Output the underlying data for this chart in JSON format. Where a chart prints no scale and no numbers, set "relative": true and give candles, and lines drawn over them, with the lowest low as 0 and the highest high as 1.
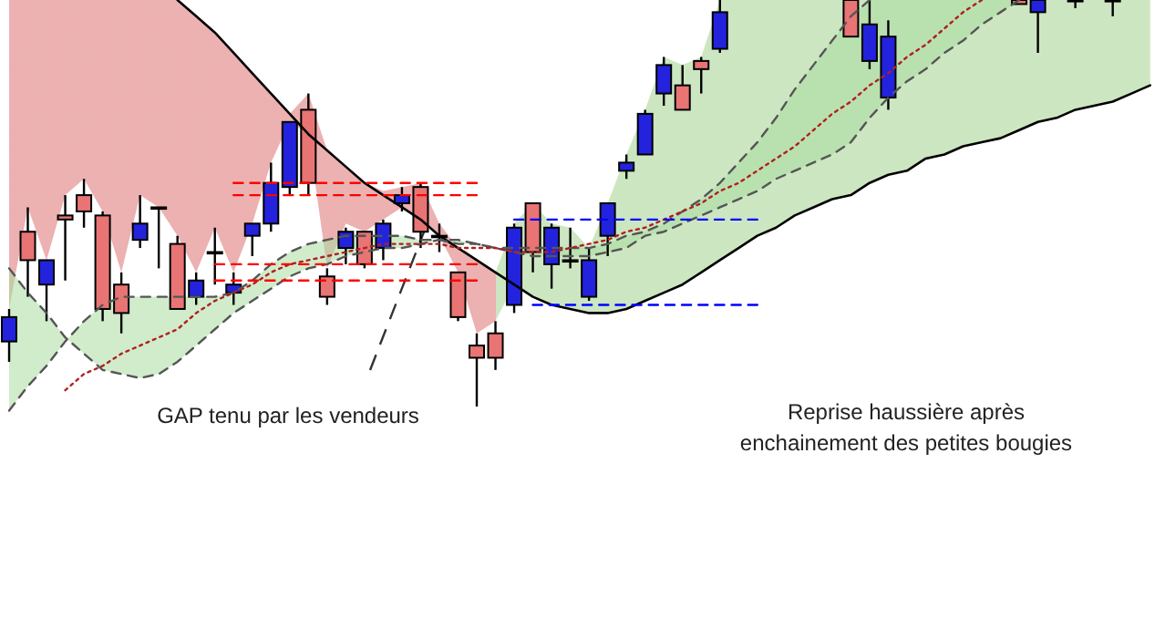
{
  "chart_data": {
    "type": "candlestick",
    "relative": true,
    "categories": [
      null,
      null,
      null,
      null,
      null,
      null,
      null,
      null,
      null,
      null,
      null,
      null,
      null,
      null,
      null,
      null,
      null,
      null,
      null,
      null,
      null,
      null,
      null,
      null,
      null,
      null,
      null,
      null,
      null,
      null,
      null,
      null,
      null,
      null,
      null,
      null,
      null,
      null,
      null,
      null,
      null,
      null,
      null,
      null,
      null,
      null,
      null,
      null,
      null,
      null,
      null,
      null,
      null,
      null,
      null,
      null,
      null,
      null,
      null,
      null,
      null,
      null
    ],
    "ohlc": [
      [
        0.16,
        0.24,
        0.11,
        0.22
      ],
      [
        0.43,
        0.49,
        0.27,
        0.36
      ],
      [
        0.3,
        0.36,
        0.21,
        0.36
      ],
      [
        0.47,
        0.52,
        0.31,
        0.46
      ],
      [
        0.52,
        0.56,
        0.44,
        0.48
      ],
      [
        0.47,
        0.48,
        0.21,
        0.24
      ],
      [
        0.3,
        0.33,
        0.18,
        0.23
      ],
      [
        0.41,
        0.52,
        0.39,
        0.45
      ],
      [
        0.49,
        0.49,
        0.34,
        0.49
      ],
      [
        0.4,
        0.42,
        0.24,
        0.24
      ],
      [
        0.27,
        0.33,
        0.25,
        0.31
      ],
      [
        0.38,
        0.44,
        0.3,
        0.38
      ],
      [
        0.28,
        0.33,
        0.25,
        0.3
      ],
      [
        0.42,
        0.45,
        0.37,
        0.45
      ],
      [
        0.45,
        0.6,
        0.43,
        0.55
      ],
      [
        0.54,
        0.7,
        0.52,
        0.7
      ],
      [
        0.73,
        0.77,
        0.52,
        0.55
      ],
      [
        0.32,
        0.34,
        0.25,
        0.27
      ],
      [
        0.39,
        0.44,
        0.35,
        0.43
      ],
      [
        0.43,
        0.43,
        0.34,
        0.35
      ],
      [
        0.39,
        0.46,
        0.36,
        0.45
      ],
      [
        0.5,
        0.54,
        0.48,
        0.52
      ],
      [
        0.54,
        0.55,
        0.39,
        0.43
      ],
      [
        0.42,
        0.45,
        0.38,
        0.42
      ],
      [
        0.33,
        0.33,
        0.21,
        0.22
      ],
      [
        0.15,
        0.18,
        0,
        0.12
      ],
      [
        0.18,
        0.21,
        0.09,
        0.12
      ],
      [
        0.25,
        0.45,
        0.23,
        0.44
      ],
      [
        0.5,
        0.5,
        0.33,
        0.38
      ],
      [
        0.35,
        0.45,
        0.29,
        0.44
      ],
      [
        0.36,
        0.44,
        0.34,
        0.36
      ],
      [
        0.27,
        0.39,
        0.26,
        0.36
      ],
      [
        0.42,
        0.5,
        0.37,
        0.5
      ],
      [
        0.58,
        0.62,
        0.56,
        0.6
      ],
      [
        0.62,
        0.73,
        0.62,
        0.72
      ],
      [
        0.77,
        0.86,
        0.74,
        0.84
      ],
      [
        0.79,
        0.84,
        0.73,
        0.73
      ],
      [
        0.85,
        0.86,
        0.77,
        0.83
      ],
      [
        0.88,
        1,
        0.87,
        0.97
      ],
      null,
      null,
      null,
      null,
      null,
      null,
      [
        1,
        1,
        0.91,
        0.91
      ],
      [
        0.85,
        1,
        0.83,
        0.94
      ],
      [
        0.76,
        0.95,
        0.73,
        0.91
      ],
      null,
      null,
      null,
      null,
      null,
      null,
      [
        1,
        1,
        0.99,
        0.99
      ],
      [
        0.97,
        1,
        0.87,
        1
      ],
      null,
      [
        1,
        1,
        0.98,
        1
      ],
      null,
      [
        1,
        1,
        0.96,
        1
      ],
      null,
      null
    ],
    "colors": [
      "#2323dd",
      "#e87474",
      "#2323dd",
      "#e87474",
      "#e87474",
      "#e87474",
      "#e87474",
      "#2323dd",
      "#e87474",
      "#e87474",
      "#2323dd",
      "#e87474",
      "#2323dd",
      "#2323dd",
      "#2323dd",
      "#2323dd",
      "#e87474",
      "#e87474",
      "#2323dd",
      "#e87474",
      "#2323dd",
      "#2323dd",
      "#e87474",
      "#e87474",
      "#e87474",
      "#e87474",
      "#e87474",
      "#2323dd",
      "#e87474",
      "#2323dd",
      "#e87474",
      "#2323dd",
      "#2323dd",
      "#2323dd",
      "#2323dd",
      "#2323dd",
      "#e87474",
      "#e87474",
      "#2323dd",
      null,
      null,
      null,
      null,
      null,
      null,
      "#e87474",
      "#2323dd",
      "#2323dd",
      null,
      null,
      null,
      null,
      null,
      null,
      "#e87474",
      "#2323dd",
      null,
      "#e87474",
      null,
      "#e87474",
      null,
      null
    ],
    "series": [
      {
        "type": "line",
        "color": "#000000",
        "line_style": "solid",
        "values": [
          null,
          null,
          null,
          null,
          null,
          null,
          null,
          null,
          null,
          1.0,
          0.96,
          0.92,
          0.87,
          0.82,
          0.77,
          0.72,
          0.67,
          0.63,
          0.59,
          0.55,
          0.52,
          0.49,
          0.46,
          0.42,
          0.39,
          0.36,
          0.33,
          0.3,
          0.27,
          0.25,
          0.24,
          0.23,
          0.23,
          0.24,
          0.26,
          0.28,
          0.3,
          0.33,
          0.36,
          0.39,
          0.42,
          0.44,
          0.47,
          0.49,
          0.51,
          0.52,
          0.55,
          0.57,
          0.58,
          0.61,
          0.62,
          0.64,
          0.65,
          0.66,
          0.68,
          0.7,
          0.71,
          0.73,
          0.74,
          0.75,
          0.77,
          0.79
        ],
        "lower": [
          0.24,
          0.49,
          0.36,
          0.52,
          0.56,
          0.48,
          0.33,
          0.52,
          0.49,
          0.42,
          0.33,
          0.44,
          0.33,
          0.45,
          0.6,
          0.7,
          0.67,
          0.34,
          0.45,
          0.43,
          0.46,
          0.49,
          0.46,
          0.42,
          0.33,
          0.18,
          0.21,
          0.3,
          0.27,
          0.25,
          0.24,
          0.23,
          0.23,
          0.24,
          0.26,
          0.28,
          0.3,
          0.33,
          0.36,
          0.39,
          0.42,
          0.44,
          0.47,
          0.49,
          0.51,
          0.52,
          0.55,
          0.57,
          0.58,
          0.61,
          0.62,
          0.64,
          0.65,
          0.66,
          0.68,
          0.7,
          0.71,
          0.73,
          0.74,
          0.75,
          0.77,
          0.79
        ],
        "upper": [
          1,
          1,
          1,
          1,
          1,
          1,
          1,
          1,
          1,
          1.0,
          0.96,
          0.92,
          0.87,
          0.82,
          0.77,
          0.72,
          0.77,
          0.63,
          0.59,
          0.55,
          0.53,
          0.54,
          0.55,
          0.45,
          0.39,
          0.36,
          0.33,
          0.45,
          0.5,
          0.45,
          0.44,
          0.39,
          0.5,
          0.62,
          0.73,
          0.86,
          0.84,
          0.86,
          1,
          1,
          1,
          1,
          1,
          1,
          1,
          1,
          1,
          1,
          1,
          1,
          1,
          1,
          1,
          1,
          1,
          1,
          1,
          1,
          1,
          1,
          1,
          1
        ]
      },
      {
        "type": "line",
        "color": "#555555",
        "line_style": "dashed",
        "values": [
          -0.01,
          0.05,
          0.1,
          0.16,
          0.21,
          0.25,
          0.27,
          0.27,
          0.27,
          0.27,
          0.27,
          0.27,
          0.28,
          0.31,
          0.35,
          0.38,
          0.4,
          0.41,
          0.42,
          0.42,
          0.42,
          0.42,
          0.41,
          0.41,
          0.4,
          0.4,
          0.39,
          0.39,
          0.39,
          0.39,
          0.39,
          0.39,
          0.4,
          0.42,
          0.43,
          0.45,
          0.48,
          0.51,
          0.55,
          0.6,
          0.65,
          0.71,
          0.78,
          0.84,
          0.9,
          0.96,
          1.0,
          null,
          null,
          null,
          null,
          null,
          null,
          null,
          null,
          null,
          null,
          null,
          null,
          null,
          null,
          null
        ],
        "lower": [
          0.34,
          0.28,
          0.23,
          0.17,
          0.13,
          0.09,
          0.08,
          0.07,
          0.08,
          0.11,
          0.15,
          0.19,
          0.23,
          0.26,
          0.29,
          0.32,
          0.34,
          0.35,
          0.37,
          0.38,
          0.39,
          0.39,
          0.4,
          0.41,
          0.41,
          0.4,
          0.39,
          0.38,
          0.37,
          0.37,
          0.37,
          0.37,
          0.38,
          0.39,
          0.42,
          0.43,
          0.45,
          0.47,
          0.49,
          0.51,
          0.53,
          0.56,
          0.58,
          0.6,
          0.62,
          0.65,
          0.71,
          0.76,
          0.8,
          0.83,
          0.87,
          0.9,
          0.94,
          0.97,
          1.0,
          null,
          null,
          null,
          null,
          null,
          null,
          null
        ],
        "upper": [
          -0.01,
          0.05,
          0.1,
          0.16,
          0.21,
          0.25,
          0.27,
          0.27,
          0.27,
          0.27,
          0.27,
          0.27,
          0.28,
          0.31,
          0.35,
          0.38,
          0.4,
          0.41,
          0.42,
          0.42,
          0.42,
          0.42,
          0.41,
          0.41,
          0.4,
          0.4,
          0.39,
          0.39,
          0.39,
          0.39,
          0.39,
          0.39,
          0.4,
          0.42,
          0.43,
          0.45,
          0.48,
          0.51,
          0.55,
          0.6,
          0.65,
          0.71,
          0.78,
          0.84,
          0.9,
          0.96,
          1.0,
          1,
          1,
          1,
          1,
          1,
          1,
          1,
          1,
          null,
          null,
          null,
          null,
          null,
          null,
          null
        ]
      },
      {
        "type": "line",
        "color": "#555555",
        "line_style": "dashed",
        "values": [
          0.34,
          0.28,
          0.23,
          0.17,
          0.13,
          0.09,
          0.08,
          0.07,
          0.08,
          0.11,
          0.15,
          0.19,
          0.23,
          0.26,
          0.29,
          0.32,
          0.34,
          0.35,
          0.37,
          0.38,
          0.39,
          0.39,
          0.4,
          0.41,
          0.41,
          0.4,
          0.39,
          0.38,
          0.37,
          0.37,
          0.37,
          0.37,
          0.38,
          0.39,
          0.42,
          0.43,
          0.45,
          0.47,
          0.49,
          0.51,
          0.53,
          0.56,
          0.58,
          0.6,
          0.62,
          0.65,
          0.71,
          0.76,
          0.8,
          0.83,
          0.87,
          0.9,
          0.94,
          0.97,
          1.0,
          null,
          null,
          null,
          null,
          null,
          null,
          null
        ]
      },
      {
        "type": "line",
        "color": "#b02020",
        "line_style": "dotted",
        "values": [
          null,
          null,
          null,
          0.04,
          0.08,
          0.1,
          0.13,
          0.15,
          0.17,
          0.19,
          0.23,
          0.26,
          0.28,
          0.3,
          0.33,
          0.35,
          0.36,
          0.37,
          0.38,
          0.39,
          0.4,
          0.4,
          0.4,
          0.4,
          0.39,
          0.39,
          0.39,
          0.38,
          0.38,
          0.38,
          0.39,
          0.4,
          0.41,
          0.43,
          0.44,
          0.46,
          0.48,
          0.5,
          0.53,
          0.55,
          0.58,
          0.61,
          0.64,
          0.68,
          0.72,
          0.75,
          0.79,
          0.82,
          0.86,
          0.89,
          0.93,
          0.97,
          1.0,
          null,
          null,
          null,
          null,
          null,
          null,
          null,
          null,
          null
        ]
      },
      {
        "type": "line",
        "color": "#ff0000",
        "line_style": "dashed",
        "values": [
          null,
          null,
          null,
          null,
          null,
          null,
          null,
          null,
          null,
          null,
          null,
          null,
          0.55,
          0.55,
          0.55,
          0.55,
          0.55,
          0.55,
          0.55,
          0.55,
          0.55,
          0.55,
          0.55,
          0.55,
          0.55,
          0.55,
          null,
          null,
          null,
          null,
          null,
          null,
          null,
          null,
          null,
          null,
          null,
          null,
          null,
          null,
          null,
          null,
          null,
          null,
          null,
          null,
          null,
          null,
          null,
          null,
          null,
          null,
          null,
          null,
          null,
          null,
          null,
          null,
          null,
          null,
          null,
          null
        ]
      },
      {
        "type": "line",
        "color": "#ff0000",
        "line_style": "dashed",
        "values": [
          null,
          null,
          null,
          null,
          null,
          null,
          null,
          null,
          null,
          null,
          null,
          null,
          0.52,
          0.52,
          0.52,
          0.52,
          0.52,
          0.52,
          0.52,
          0.52,
          0.52,
          0.52,
          0.52,
          0.52,
          0.52,
          0.52,
          null,
          null,
          null,
          null,
          null,
          null,
          null,
          null,
          null,
          null,
          null,
          null,
          null,
          null,
          null,
          null,
          null,
          null,
          null,
          null,
          null,
          null,
          null,
          null,
          null,
          null,
          null,
          null,
          null,
          null,
          null,
          null,
          null,
          null,
          null,
          null
        ]
      },
      {
        "type": "line",
        "color": "#ff0000",
        "line_style": "dashed",
        "values": [
          null,
          null,
          null,
          null,
          null,
          null,
          null,
          null,
          null,
          null,
          null,
          0.35,
          0.35,
          0.35,
          0.35,
          0.35,
          0.35,
          0.35,
          0.35,
          0.35,
          0.35,
          0.35,
          0.35,
          0.35,
          0.35,
          0.35,
          null,
          null,
          null,
          null,
          null,
          null,
          null,
          null,
          null,
          null,
          null,
          null,
          null,
          null,
          null,
          null,
          null,
          null,
          null,
          null,
          null,
          null,
          null,
          null,
          null,
          null,
          null,
          null,
          null,
          null,
          null,
          null,
          null,
          null,
          null,
          null
        ]
      },
      {
        "type": "line",
        "color": "#ff0000",
        "line_style": "dashed",
        "values": [
          null,
          null,
          null,
          null,
          null,
          null,
          null,
          null,
          null,
          null,
          null,
          0.31,
          0.31,
          0.31,
          0.31,
          0.31,
          0.31,
          0.31,
          0.31,
          0.31,
          0.31,
          0.31,
          0.31,
          0.31,
          0.31,
          0.31,
          null,
          null,
          null,
          null,
          null,
          null,
          null,
          null,
          null,
          null,
          null,
          null,
          null,
          null,
          null,
          null,
          null,
          null,
          null,
          null,
          null,
          null,
          null,
          null,
          null,
          null,
          null,
          null,
          null,
          null,
          null,
          null,
          null,
          null,
          null,
          null
        ]
      },
      {
        "type": "line",
        "color": "#0000ff",
        "line_style": "dashed",
        "values": [
          null,
          null,
          null,
          null,
          null,
          null,
          null,
          null,
          null,
          null,
          null,
          null,
          null,
          null,
          null,
          null,
          null,
          null,
          null,
          null,
          null,
          null,
          null,
          null,
          null,
          null,
          null,
          0.46,
          0.46,
          0.46,
          0.46,
          0.46,
          0.46,
          0.46,
          0.46,
          0.46,
          0.46,
          0.46,
          0.46,
          0.46,
          0.46,
          null,
          null,
          null,
          null,
          null,
          null,
          null,
          null,
          null,
          null,
          null,
          null,
          null,
          null,
          null,
          null,
          null,
          null,
          null,
          null,
          null
        ]
      },
      {
        "type": "line",
        "color": "#0000ff",
        "line_style": "dashed",
        "values": [
          null,
          null,
          null,
          null,
          null,
          null,
          null,
          null,
          null,
          null,
          null,
          null,
          null,
          null,
          null,
          null,
          null,
          null,
          null,
          null,
          null,
          null,
          null,
          null,
          null,
          null,
          null,
          null,
          0.25,
          0.25,
          0.25,
          0.25,
          0.25,
          0.25,
          0.25,
          0.25,
          0.25,
          0.25,
          0.25,
          0.25,
          0.25,
          null,
          null,
          null,
          null,
          null,
          null,
          null,
          null,
          null,
          null,
          null,
          null,
          null,
          null,
          null,
          null,
          null,
          null,
          null,
          null,
          null
        ]
      }
    ],
    "annotations": [
      "GAP tenu par les vendeurs",
      "Reprise haussière après\nenchainement des petites bougies"
    ]
  }
}
